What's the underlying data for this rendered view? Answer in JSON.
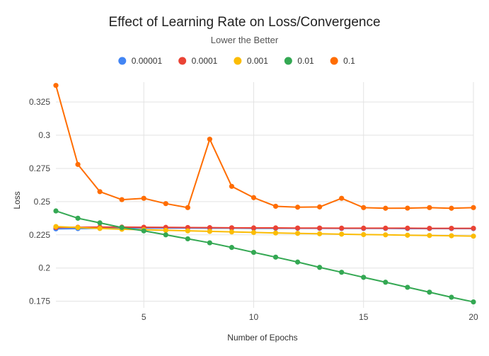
{
  "chart_data": {
    "type": "line",
    "title": "Effect of Learning Rate on Loss/Convergence",
    "subtitle": "Lower the Better",
    "xlabel": "Number of Epochs",
    "ylabel": "Loss",
    "xlim": [
      1,
      20
    ],
    "ylim": [
      0.17,
      0.34
    ],
    "xticks": [
      5,
      10,
      15,
      20
    ],
    "xtick_labels": [
      "5",
      "10",
      "15",
      "20"
    ],
    "yticks": [
      0.175,
      0.2,
      0.225,
      0.25,
      0.275,
      0.3,
      0.325
    ],
    "ytick_labels": [
      "0.175",
      "0.2",
      "0.225",
      "0.25",
      "0.275",
      "0.3",
      "0.325"
    ],
    "grid": true,
    "legend_position": "top",
    "x": [
      1,
      2,
      3,
      4,
      5,
      6,
      7,
      8,
      9,
      10,
      11,
      12,
      13,
      14,
      15,
      16,
      17,
      18,
      19,
      20
    ],
    "series": [
      {
        "name": "0.00001",
        "color": "#4285F4",
        "values": [
          0.2295,
          0.2297,
          0.2299,
          0.23,
          0.2301,
          0.2301,
          0.2301,
          0.23,
          0.23,
          0.2299,
          0.2299,
          0.2299,
          0.2299,
          0.2298,
          0.2298,
          0.2298,
          0.2297,
          0.2297,
          0.2297,
          0.2297
        ]
      },
      {
        "name": "0.0001",
        "color": "#EA4335",
        "values": [
          0.2305,
          0.2307,
          0.2308,
          0.2308,
          0.2307,
          0.2306,
          0.2305,
          0.2304,
          0.2303,
          0.2302,
          0.2302,
          0.2301,
          0.2301,
          0.23,
          0.23,
          0.23,
          0.23,
          0.2299,
          0.2299,
          0.2299
        ]
      },
      {
        "name": "0.001",
        "color": "#FBBC04",
        "values": [
          0.2312,
          0.2305,
          0.2298,
          0.2292,
          0.2288,
          0.2284,
          0.228,
          0.2276,
          0.2272,
          0.2268,
          0.2264,
          0.2261,
          0.2258,
          0.2255,
          0.2252,
          0.225,
          0.2247,
          0.2245,
          0.2243,
          0.224
        ]
      },
      {
        "name": "0.01",
        "color": "#34A853",
        "values": [
          0.243,
          0.2375,
          0.234,
          0.2305,
          0.228,
          0.225,
          0.222,
          0.219,
          0.2155,
          0.2118,
          0.2082,
          0.2045,
          0.2005,
          0.1968,
          0.193,
          0.1893,
          0.1855,
          0.1818,
          0.178,
          0.1745
        ]
      },
      {
        "name": "0.1",
        "color": "#FF6D01",
        "values": [
          0.3375,
          0.278,
          0.2575,
          0.2515,
          0.2525,
          0.2485,
          0.2455,
          0.297,
          0.2615,
          0.253,
          0.2465,
          0.2458,
          0.246,
          0.2525,
          0.2455,
          0.245,
          0.2451,
          0.2455,
          0.245,
          0.2455
        ]
      }
    ]
  }
}
